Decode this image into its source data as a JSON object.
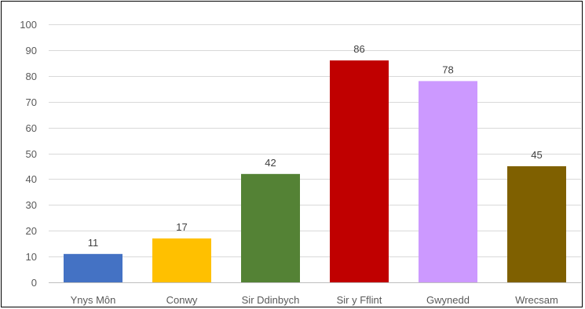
{
  "chart_data": {
    "type": "bar",
    "title": "",
    "xlabel": "",
    "ylabel": "",
    "categories": [
      "Ynys Môn",
      "Conwy",
      "Sir Ddinbych",
      "Sir y Fflint",
      "Gwynedd",
      "Wrecsam"
    ],
    "values": [
      11,
      17,
      42,
      86,
      78,
      45
    ],
    "colors": [
      "#4472c4",
      "#ffc000",
      "#548235",
      "#c00000",
      "#cc99ff",
      "#7f6000"
    ],
    "ylim": [
      0,
      100
    ],
    "yticks": [
      0,
      10,
      20,
      30,
      40,
      50,
      60,
      70,
      80,
      90,
      100
    ],
    "grid": true,
    "legend": "none",
    "data_labels": true
  }
}
